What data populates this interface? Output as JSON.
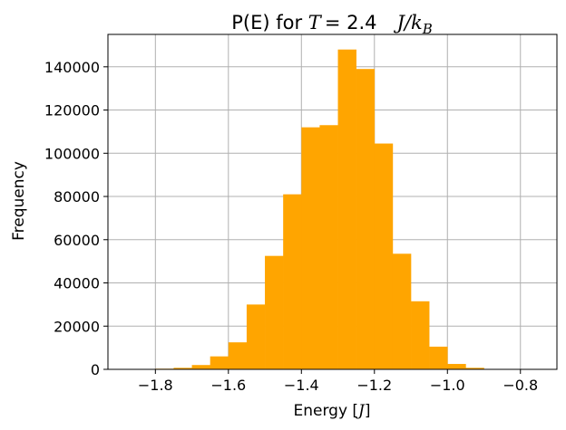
{
  "chart_data": {
    "type": "bar",
    "title": "P(E) for T = 2.4   J/k_B",
    "title_parts": {
      "prefix": "P(E) for ",
      "temp_symbol": "T",
      "temp_value": "= 2.4",
      "unit": "J/k",
      "unit_sub": "B"
    },
    "xlabel": "Energy [J]",
    "xlabel_parts": {
      "text": "Energy [",
      "unit": "J",
      "close": "]"
    },
    "ylabel": "Frequency",
    "color": "#ffa500",
    "grid": true,
    "xlim": [
      -1.93,
      -0.7
    ],
    "ylim": [
      0,
      155000
    ],
    "bin_width": 0.05,
    "bins": [
      {
        "left": -1.85,
        "value": 0
      },
      {
        "left": -1.8,
        "value": 300
      },
      {
        "left": -1.75,
        "value": 700
      },
      {
        "left": -1.7,
        "value": 2000
      },
      {
        "left": -1.65,
        "value": 6000
      },
      {
        "left": -1.6,
        "value": 12500
      },
      {
        "left": -1.55,
        "value": 30000
      },
      {
        "left": -1.5,
        "value": 52500
      },
      {
        "left": -1.45,
        "value": 81000
      },
      {
        "left": -1.4,
        "value": 112000
      },
      {
        "left": -1.35,
        "value": 113000
      },
      {
        "left": -1.3,
        "value": 148000
      },
      {
        "left": -1.25,
        "value": 139000
      },
      {
        "left": -1.2,
        "value": 104500
      },
      {
        "left": -1.15,
        "value": 53500
      },
      {
        "left": -1.1,
        "value": 31500
      },
      {
        "left": -1.05,
        "value": 10500
      },
      {
        "left": -1.0,
        "value": 2500
      },
      {
        "left": -0.95,
        "value": 700
      },
      {
        "left": -0.9,
        "value": 100
      }
    ],
    "x_ticks": [
      -1.8,
      -1.6,
      -1.4,
      -1.2,
      -1.0,
      -0.8
    ],
    "x_tick_labels": [
      "−1.8",
      "−1.6",
      "−1.4",
      "−1.2",
      "−1.0",
      "−0.8"
    ],
    "y_ticks": [
      0,
      20000,
      40000,
      60000,
      80000,
      100000,
      120000,
      140000
    ],
    "y_tick_labels": [
      "0",
      "20000",
      "40000",
      "60000",
      "80000",
      "100000",
      "120000",
      "140000"
    ]
  }
}
